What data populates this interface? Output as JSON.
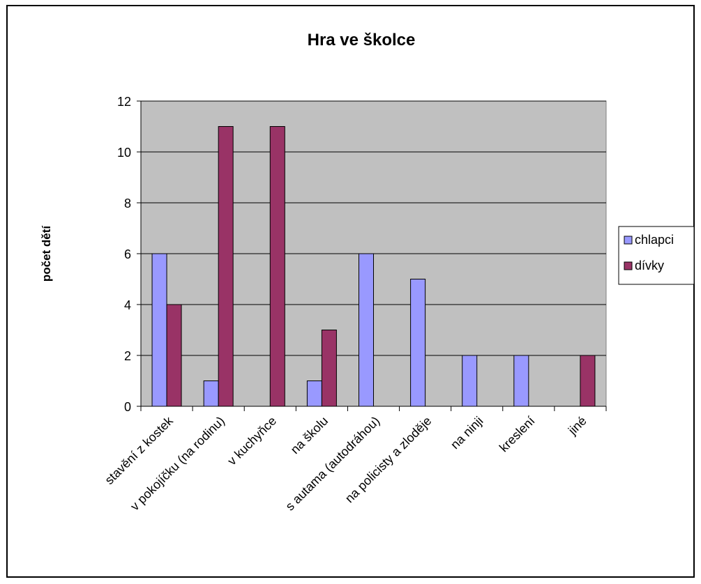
{
  "chart_data": {
    "type": "bar",
    "title": "Hra ve školce",
    "xlabel": "",
    "ylabel": "počet dětí",
    "categories": [
      "stavění z kostek",
      "v pokojíčku (na rodinu)",
      "v kuchyňce",
      "na školu",
      "s autama (autodráhou)",
      "na policisty a zloděje",
      "na ninji",
      "kreslení",
      "jiné"
    ],
    "series": [
      {
        "name": "chlapci",
        "values": [
          6,
          1,
          0,
          1,
          6,
          5,
          2,
          2,
          0
        ]
      },
      {
        "name": "dívky",
        "values": [
          4,
          11,
          11,
          3,
          0,
          0,
          0,
          0,
          2
        ]
      }
    ],
    "ylim": [
      0,
      12
    ],
    "yticks": [
      "0",
      "2",
      "4",
      "6",
      "8",
      "10",
      "12"
    ],
    "grid": "horizontal",
    "legend_position": "right",
    "colors": {
      "chlapci": "#9999ff",
      "dívky": "#993366",
      "plot_background": "#c0c0c0",
      "chart_border": "#000000"
    }
  }
}
